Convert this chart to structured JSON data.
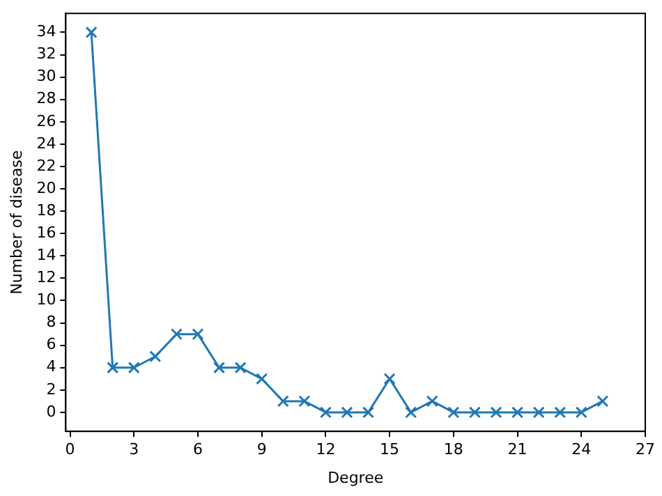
{
  "chart_data": {
    "type": "line",
    "xlabel": "Degree",
    "ylabel": "Number of disease",
    "x": [
      1,
      2,
      3,
      4,
      5,
      6,
      7,
      8,
      9,
      10,
      11,
      12,
      13,
      14,
      15,
      16,
      17,
      18,
      19,
      20,
      21,
      22,
      23,
      24,
      25
    ],
    "series": [
      {
        "color": "#1f77b4",
        "values": [
          34,
          4,
          4,
          5,
          7,
          7,
          4,
          4,
          3,
          1,
          1,
          0,
          0,
          0,
          3,
          0,
          1,
          0,
          0,
          0,
          0,
          0,
          0,
          0,
          1
        ]
      }
    ],
    "xlim": [
      -0.2,
      27
    ],
    "xticks": [
      0,
      3,
      6,
      9,
      12,
      15,
      18,
      21,
      24,
      27
    ],
    "ylim": [
      -1.7,
      35.7
    ],
    "yticks": [
      0,
      2,
      4,
      6,
      8,
      10,
      12,
      14,
      16,
      18,
      20,
      22,
      24,
      26,
      28,
      30,
      32,
      34
    ],
    "marker": "cross",
    "line_style": "solid",
    "grid": false,
    "legend": false
  }
}
